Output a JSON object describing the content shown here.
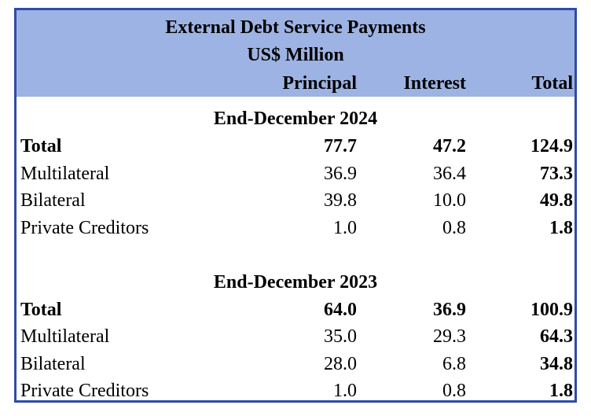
{
  "header": {
    "title": "External Debt Service Payments",
    "subtitle": "US$ Million",
    "columns": [
      "Principal",
      "Interest",
      "Total"
    ]
  },
  "sections": [
    {
      "title": "End-December 2024",
      "rows": [
        {
          "label": "Total",
          "principal": "77.7",
          "interest": "47.2",
          "total": "124.9",
          "bold": true
        },
        {
          "label": "Multilateral",
          "principal": "36.9",
          "interest": "36.4",
          "total": "73.3",
          "bold": false
        },
        {
          "label": "Bilateral",
          "principal": "39.8",
          "interest": "10.0",
          "total": "49.8",
          "bold": false
        },
        {
          "label": "Private Creditors",
          "principal": "1.0",
          "interest": "0.8",
          "total": "1.8",
          "bold": false
        }
      ]
    },
    {
      "title": "End-December 2023",
      "rows": [
        {
          "label": "Total",
          "principal": "64.0",
          "interest": "36.9",
          "total": "100.9",
          "bold": true
        },
        {
          "label": "Multilateral",
          "principal": "35.0",
          "interest": "29.3",
          "total": "64.3",
          "bold": false
        },
        {
          "label": "Bilateral",
          "principal": "28.0",
          "interest": "6.8",
          "total": "34.8",
          "bold": false
        },
        {
          "label": "Private Creditors",
          "principal": "1.0",
          "interest": "0.8",
          "total": "1.8",
          "bold": false
        }
      ]
    }
  ],
  "colors": {
    "header_background": "#9db3e3",
    "border": "#2f4ba8"
  }
}
